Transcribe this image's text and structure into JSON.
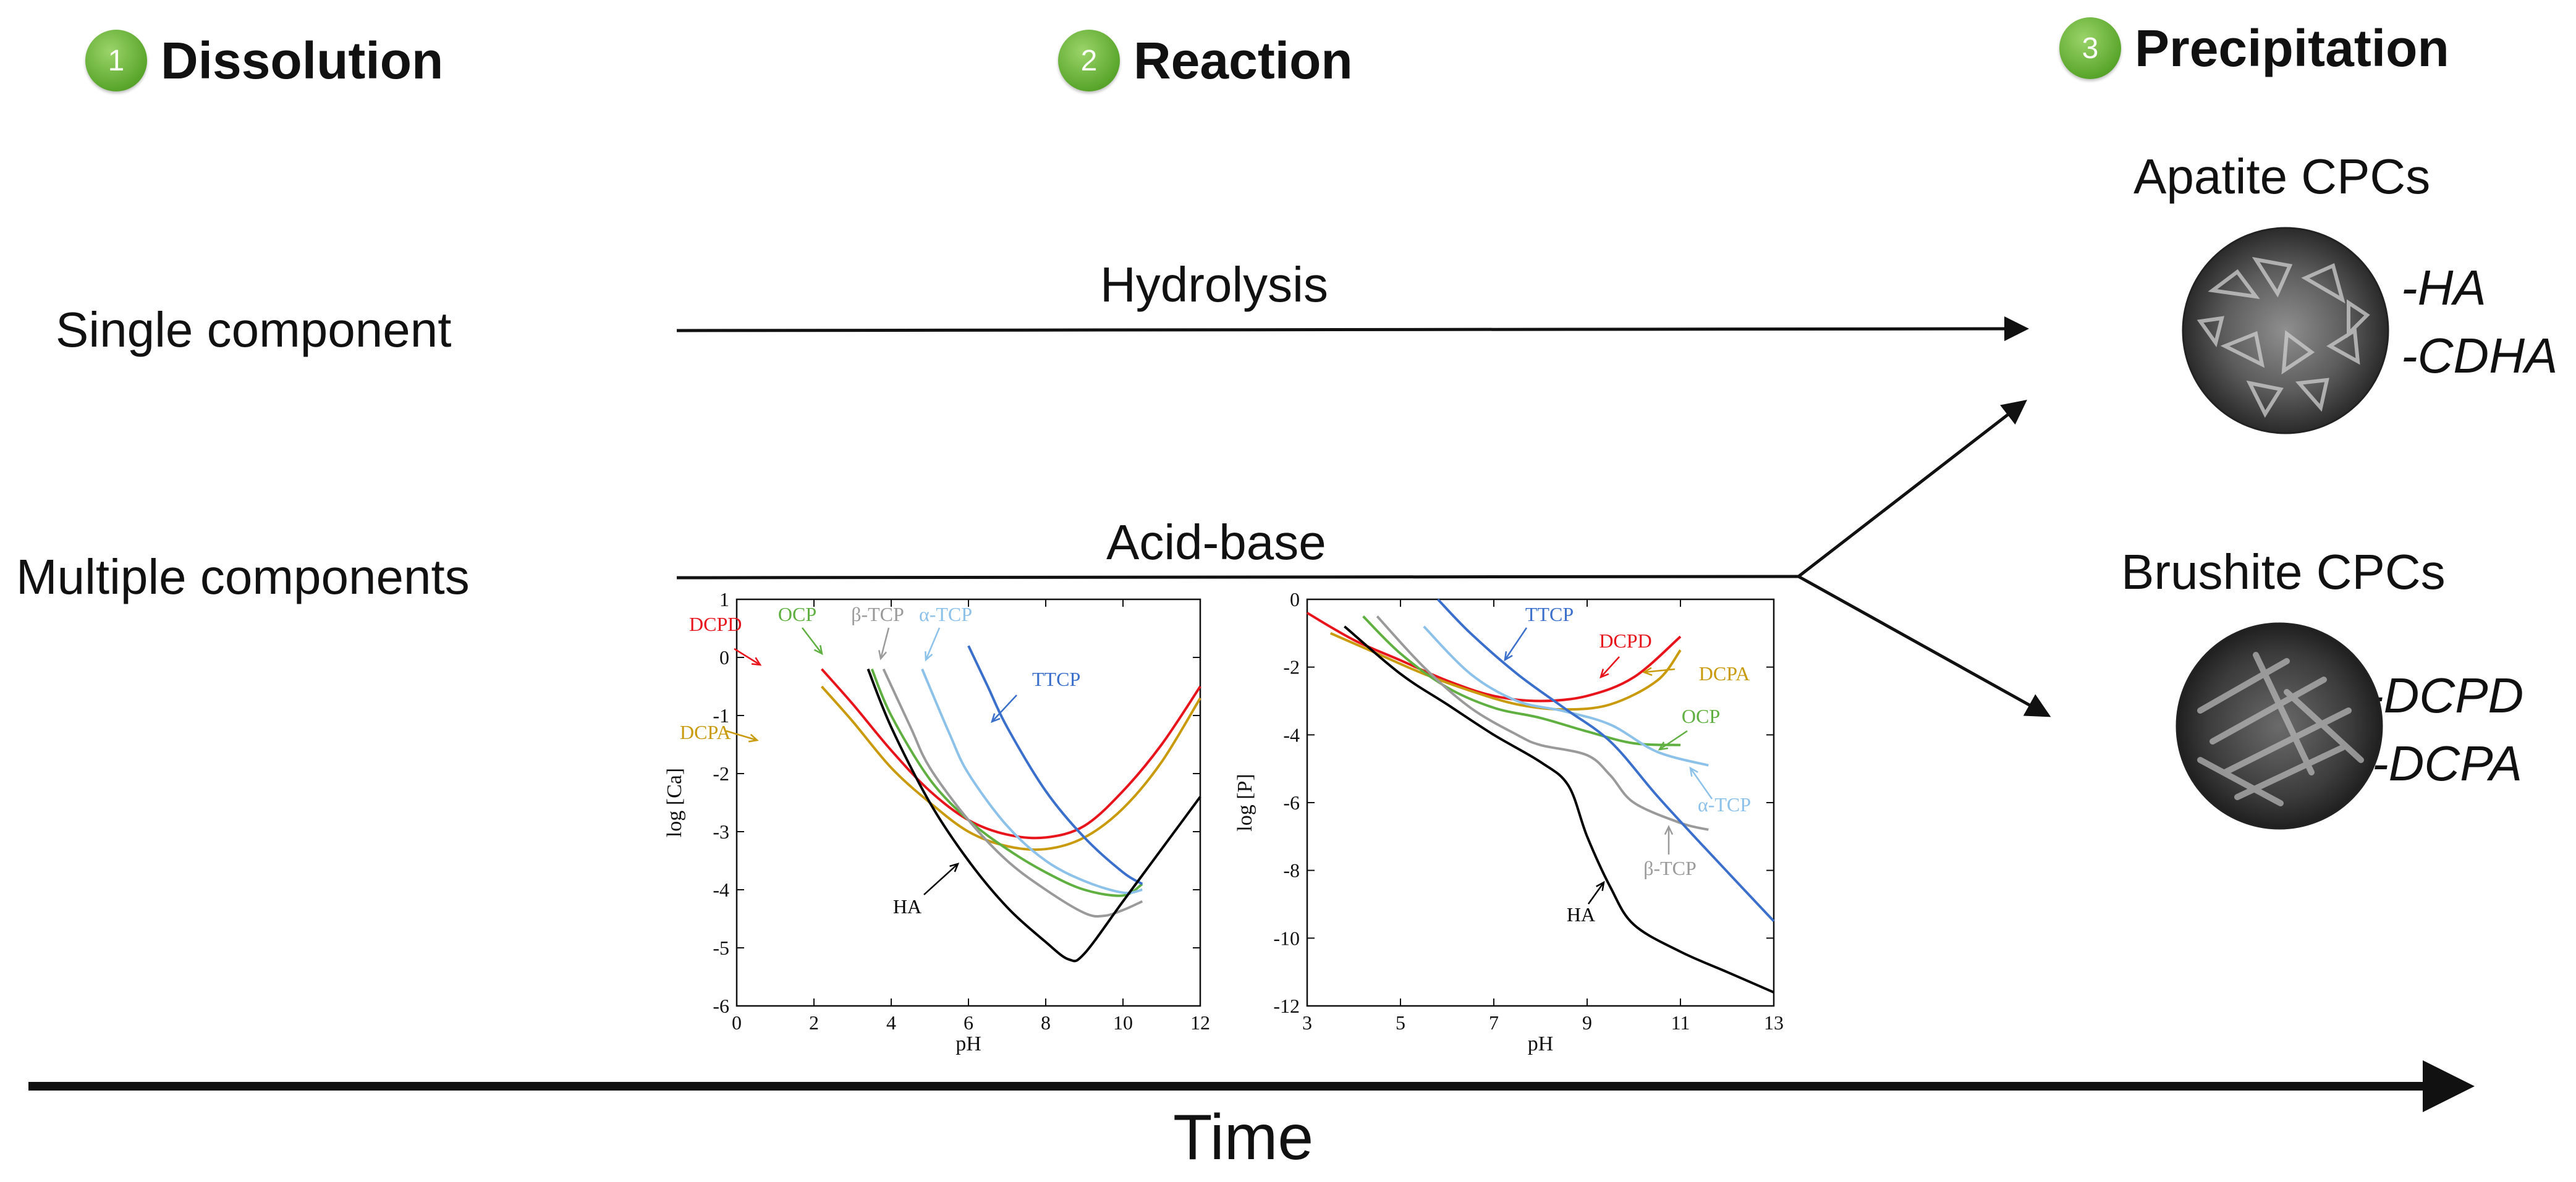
{
  "steps": [
    {
      "number": "1",
      "title": "Dissolution",
      "icon": "circle-badge"
    },
    {
      "number": "2",
      "title": "Reaction",
      "icon": "circle-badge"
    },
    {
      "number": "3",
      "title": "Precipitation",
      "icon": "circle-badge"
    }
  ],
  "rows": {
    "single": "Single component",
    "multiple": "Multiple components"
  },
  "arrows": {
    "hydrolysis": "Hydrolysis",
    "acid_base": "Acid-base"
  },
  "products": {
    "apatite": {
      "title": "Apatite CPCs",
      "items": [
        "-HA",
        "-CDHA"
      ]
    },
    "brushite": {
      "title": "Brushite CPCs",
      "items": [
        "-DCPD",
        "-DCPA"
      ]
    }
  },
  "time_label": "Time",
  "colors": {
    "badge": "#5aa62c",
    "DCPD": "#e8141c",
    "DCPA": "#c99a0c",
    "OCP": "#5fb040",
    "bTCP": "#9a9a9a",
    "aTCP": "#8cc1ea",
    "TTCP": "#3a6fcb",
    "HA": "#000000"
  },
  "chart_data": [
    {
      "type": "line",
      "xlabel": "pH",
      "ylabel": "log [Ca]",
      "xlim": [
        0,
        12
      ],
      "ylim": [
        -6,
        1
      ],
      "xticks": [
        "0",
        "2",
        "4",
        "6",
        "8",
        "10",
        "12"
      ],
      "yticks": [
        "1",
        "0",
        "-1",
        "-2",
        "-3",
        "-4",
        "-5",
        "-6"
      ],
      "series": [
        {
          "name": "DCPD",
          "color": "#e8141c",
          "x": [
            2.2,
            3.0,
            4.0,
            5.0,
            6.0,
            7.0,
            8.0,
            9.0,
            10.0,
            11.0,
            12.0
          ],
          "y": [
            -0.2,
            -0.8,
            -1.6,
            -2.3,
            -2.8,
            -3.05,
            -3.1,
            -2.9,
            -2.3,
            -1.5,
            -0.5
          ]
        },
        {
          "name": "DCPA",
          "color": "#c99a0c",
          "x": [
            2.2,
            3.0,
            4.0,
            5.0,
            6.0,
            7.0,
            8.0,
            9.0,
            10.0,
            11.0,
            12.0
          ],
          "y": [
            -0.5,
            -1.1,
            -1.9,
            -2.5,
            -3.0,
            -3.25,
            -3.3,
            -3.1,
            -2.6,
            -1.8,
            -0.7
          ]
        },
        {
          "name": "OCP",
          "color": "#5fb040",
          "x": [
            3.5,
            4.0,
            5.0,
            6.0,
            7.0,
            8.0,
            9.0,
            10.0,
            10.5
          ],
          "y": [
            -0.2,
            -1.0,
            -2.1,
            -2.8,
            -3.3,
            -3.7,
            -4.0,
            -4.1,
            -3.9
          ]
        },
        {
          "name": "β-TCP",
          "color": "#9a9a9a",
          "x": [
            3.8,
            4.5,
            5.0,
            6.0,
            7.0,
            8.0,
            9.0,
            9.5,
            10.0,
            10.5
          ],
          "y": [
            -0.2,
            -1.2,
            -1.9,
            -2.8,
            -3.5,
            -4.0,
            -4.4,
            -4.45,
            -4.35,
            -4.2
          ]
        },
        {
          "name": "α-TCP",
          "color": "#8cc1ea",
          "x": [
            4.8,
            5.5,
            6.0,
            7.0,
            8.0,
            9.0,
            10.0,
            10.5
          ],
          "y": [
            -0.2,
            -1.3,
            -2.0,
            -2.9,
            -3.5,
            -3.85,
            -4.05,
            -4.0
          ]
        },
        {
          "name": "TTCP",
          "color": "#3a6fcb",
          "x": [
            6.0,
            6.5,
            7.0,
            8.0,
            9.0,
            10.0,
            10.5
          ],
          "y": [
            0.2,
            -0.5,
            -1.2,
            -2.3,
            -3.1,
            -3.7,
            -3.9
          ]
        },
        {
          "name": "HA",
          "color": "#000000",
          "x": [
            3.4,
            4.0,
            5.0,
            6.0,
            7.0,
            8.0,
            8.6,
            9.0,
            10.0,
            11.0,
            12.0
          ],
          "y": [
            -0.2,
            -1.2,
            -2.5,
            -3.5,
            -4.3,
            -4.9,
            -5.2,
            -5.1,
            -4.2,
            -3.3,
            -2.4
          ]
        }
      ],
      "annotations": [
        {
          "text": "DCPD",
          "color": "#e8141c"
        },
        {
          "text": "OCP",
          "color": "#5fb040"
        },
        {
          "text": "β-TCP",
          "color": "#9a9a9a"
        },
        {
          "text": "α-TCP",
          "color": "#8cc1ea"
        },
        {
          "text": "TTCP",
          "color": "#3a6fcb"
        },
        {
          "text": "DCPA",
          "color": "#c99a0c"
        },
        {
          "text": "HA",
          "color": "#000000"
        }
      ]
    },
    {
      "type": "line",
      "xlabel": "pH",
      "ylabel": "log [P]",
      "xlim": [
        3,
        13
      ],
      "ylim": [
        -12,
        0
      ],
      "xticks": [
        "3",
        "5",
        "7",
        "9",
        "11",
        "13"
      ],
      "yticks": [
        "0",
        "-2",
        "-4",
        "-6",
        "-8",
        "-10",
        "-12"
      ],
      "series": [
        {
          "name": "DCPD",
          "color": "#e8141c",
          "x": [
            3.0,
            4.0,
            5.0,
            6.0,
            7.0,
            8.0,
            9.0,
            10.0,
            11.0
          ],
          "y": [
            -0.4,
            -1.2,
            -1.8,
            -2.4,
            -2.85,
            -3.0,
            -2.85,
            -2.3,
            -1.1
          ]
        },
        {
          "name": "DCPA",
          "color": "#c99a0c",
          "x": [
            3.5,
            4.5,
            5.5,
            6.5,
            7.5,
            8.5,
            9.5,
            10.5,
            11.0
          ],
          "y": [
            -1.0,
            -1.6,
            -2.2,
            -2.7,
            -3.1,
            -3.25,
            -3.1,
            -2.4,
            -1.5
          ]
        },
        {
          "name": "OCP",
          "color": "#5fb040",
          "x": [
            4.2,
            5.0,
            6.0,
            7.0,
            8.0,
            9.0,
            10.0,
            11.0
          ],
          "y": [
            -0.5,
            -1.6,
            -2.6,
            -3.2,
            -3.5,
            -3.9,
            -4.25,
            -4.3
          ]
        },
        {
          "name": "β-TCP",
          "color": "#9a9a9a",
          "x": [
            4.5,
            5.5,
            6.5,
            7.5,
            8.0,
            9.0,
            9.5,
            10.0,
            11.0,
            11.6
          ],
          "y": [
            -0.5,
            -2.0,
            -3.2,
            -4.0,
            -4.3,
            -4.6,
            -5.2,
            -6.0,
            -6.6,
            -6.8
          ]
        },
        {
          "name": "α-TCP",
          "color": "#8cc1ea",
          "x": [
            5.5,
            6.5,
            7.5,
            8.5,
            9.5,
            10.5,
            11.6
          ],
          "y": [
            -0.8,
            -2.2,
            -3.0,
            -3.3,
            -3.7,
            -4.5,
            -4.9
          ]
        },
        {
          "name": "TTCP",
          "color": "#3a6fcb",
          "x": [
            5.8,
            6.5,
            7.5,
            8.5,
            9.5,
            10.5,
            11.5,
            13.0
          ],
          "y": [
            0.0,
            -1.0,
            -2.2,
            -3.2,
            -4.2,
            -5.8,
            -7.3,
            -9.5
          ]
        },
        {
          "name": "HA",
          "color": "#000000",
          "x": [
            3.8,
            5.0,
            6.0,
            7.0,
            8.0,
            8.6,
            9.0,
            9.5,
            10.0,
            11.0,
            12.0,
            13.0
          ],
          "y": [
            -0.8,
            -2.2,
            -3.1,
            -4.0,
            -4.8,
            -5.5,
            -7.0,
            -8.5,
            -9.6,
            -10.4,
            -11.0,
            -11.6
          ]
        }
      ],
      "annotations": [
        {
          "text": "TTCP",
          "color": "#3a6fcb"
        },
        {
          "text": "DCPD",
          "color": "#e8141c"
        },
        {
          "text": "DCPA",
          "color": "#c99a0c"
        },
        {
          "text": "OCP",
          "color": "#5fb040"
        },
        {
          "text": "α-TCP",
          "color": "#8cc1ea"
        },
        {
          "text": "β-TCP",
          "color": "#9a9a9a"
        },
        {
          "text": "HA",
          "color": "#000000"
        }
      ]
    }
  ]
}
